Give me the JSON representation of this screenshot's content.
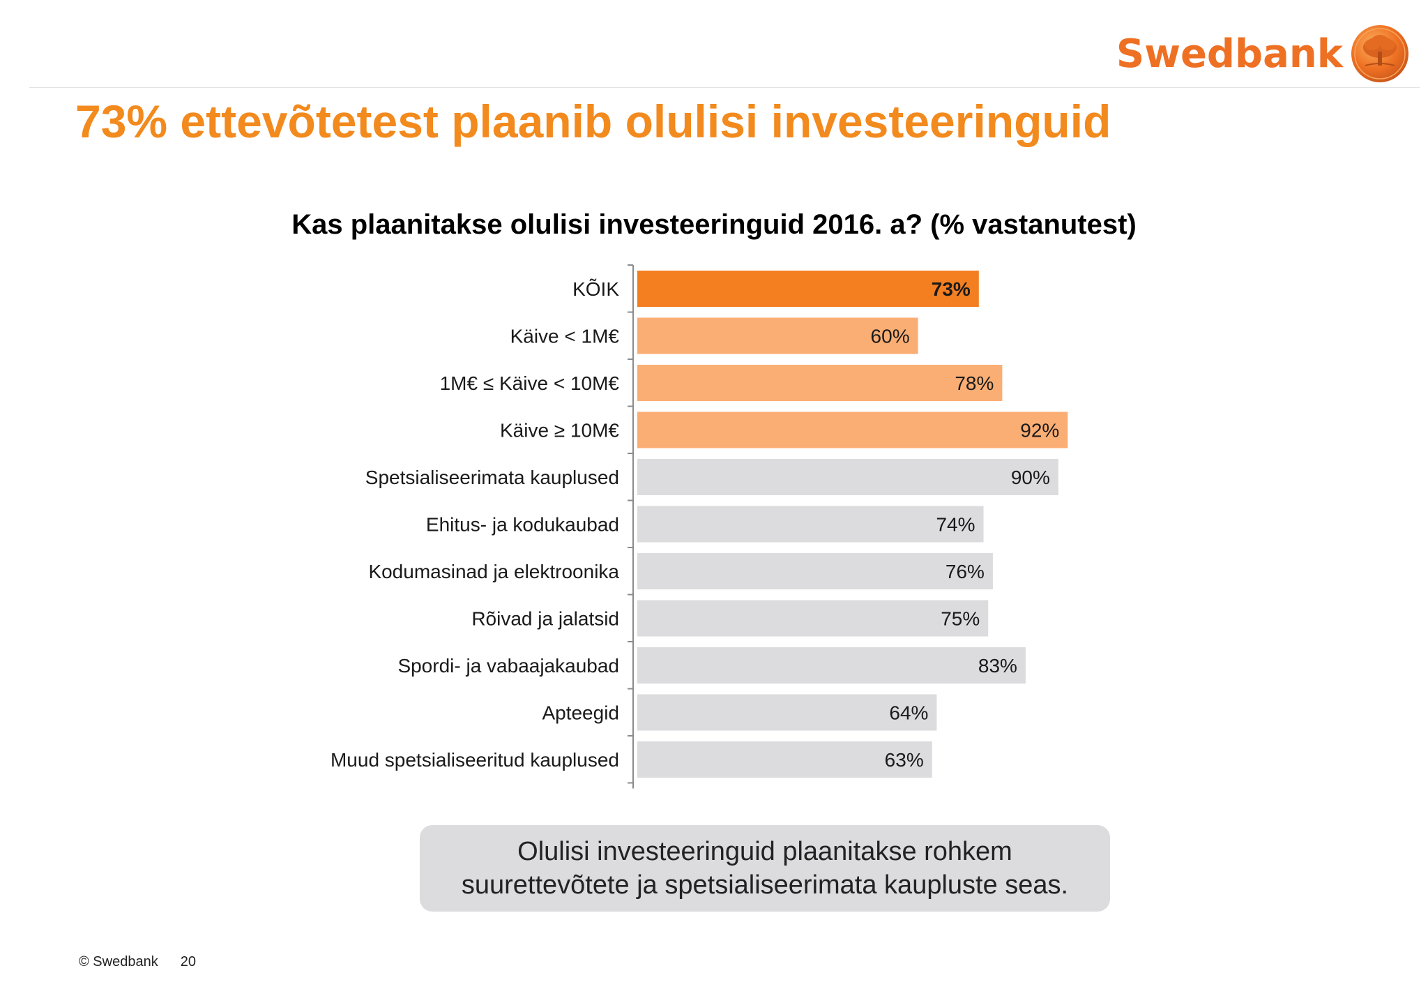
{
  "brand": {
    "name": "Swedbank",
    "color": "#ee7023",
    "icon": "oak-tree-seal-icon"
  },
  "slide": {
    "title": "73% ettevõtetest plaanib olulisi investeeringuid",
    "callout": "Olulisi investeeringuid plaanitakse rohkem suurettevõtete ja spetsialiseerimata kaupluste seas.",
    "footer": {
      "copyright": "© Swedbank",
      "page_number": "20"
    }
  },
  "chart_data": {
    "type": "bar",
    "orientation": "horizontal",
    "title": "Kas plaanitakse olulisi investeeringuid 2016. a? (% vastanutest)",
    "xlabel": "",
    "ylabel": "",
    "xlim": [
      0,
      100
    ],
    "grid": false,
    "legend": "none",
    "categories": [
      "KÕIK",
      "Käive < 1M€",
      "1M€ ≤ Käive < 10M€",
      "Käive ≥ 10M€",
      "Spetsialiseerimata kauplused",
      "Ehitus- ja kodukaubad",
      "Kodumasinad ja elektroonika",
      "Rõivad ja jalatsid",
      "Spordi- ja vabaajakaubad",
      "Apteegid",
      "Muud spetsialiseeritud kauplused"
    ],
    "values": [
      73,
      60,
      78,
      92,
      90,
      74,
      76,
      75,
      83,
      64,
      63
    ],
    "data_labels": [
      "73%",
      "60%",
      "78%",
      "92%",
      "90%",
      "74%",
      "76%",
      "75%",
      "83%",
      "64%",
      "63%"
    ],
    "colors": {
      "total": "#f47f21",
      "turnover": "#fbae74",
      "sector": "#dcdbdd"
    },
    "bar_groups": [
      "total",
      "turnover",
      "turnover",
      "turnover",
      "sector",
      "sector",
      "sector",
      "sector",
      "sector",
      "sector",
      "sector"
    ]
  }
}
